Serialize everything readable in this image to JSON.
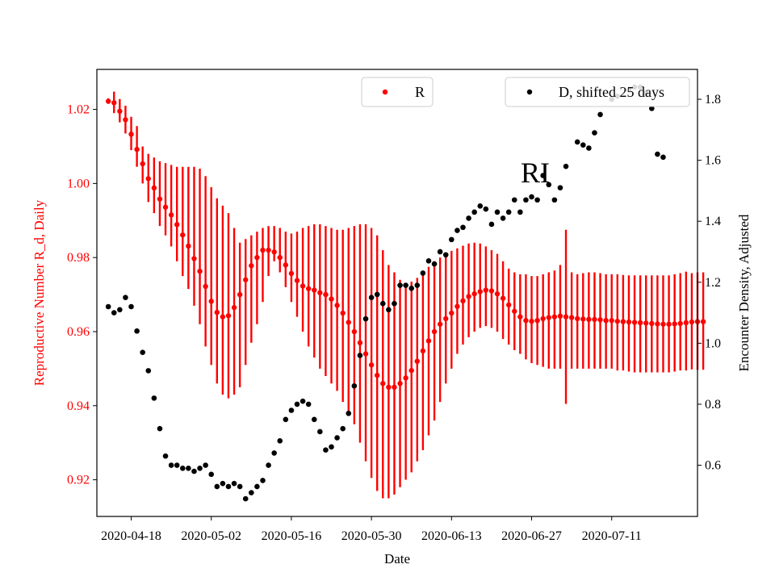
{
  "chart_data": {
    "type": "scatter",
    "title": "",
    "xlabel": "Date",
    "ylabel_left": "Reproductive Number R_d, Daily",
    "ylabel_right": "Encounter Density, Adjusted",
    "x_start_date": "2020-04-14",
    "xlim_dates": [
      "2020-04-12",
      "2020-07-26"
    ],
    "x_ticks": [
      "2020-04-18",
      "2020-05-02",
      "2020-05-16",
      "2020-05-30",
      "2020-06-13",
      "2020-06-27",
      "2020-07-11"
    ],
    "ylim_left": [
      0.9101,
      1.0308
    ],
    "ylim_right": [
      0.432,
      1.898
    ],
    "yticks_left": [
      "0.92",
      "0.94",
      "0.96",
      "0.98",
      "1.00",
      "1.02"
    ],
    "yticks_right": [
      "0.6",
      "0.8",
      "1.0",
      "1.2",
      "1.4",
      "1.6",
      "1.8"
    ],
    "annotation": "RI",
    "colors": {
      "R": "#ff0000",
      "D": "#000000",
      "left_axis_text": "#ff0000"
    },
    "legend": [
      {
        "name": "R",
        "color": "#ff0000",
        "position": "top-center"
      },
      {
        "name": "D, shifted 25 days",
        "color": "#000000",
        "position": "top-right"
      }
    ],
    "series_R": {
      "name": "R",
      "values": [
        1.0222,
        1.0218,
        1.0195,
        1.0172,
        1.0133,
        1.0092,
        1.0053,
        1.0013,
        0.9988,
        0.9958,
        0.9936,
        0.9915,
        0.9889,
        0.9861,
        0.9831,
        0.9797,
        0.9763,
        0.9722,
        0.9682,
        0.9652,
        0.964,
        0.9643,
        0.9665,
        0.97,
        0.974,
        0.9778,
        0.98,
        0.982,
        0.982,
        0.9815,
        0.98,
        0.978,
        0.9757,
        0.9738,
        0.9723,
        0.9716,
        0.9712,
        0.9705,
        0.97,
        0.9688,
        0.9671,
        0.965,
        0.9625,
        0.96,
        0.957,
        0.954,
        0.951,
        0.9482,
        0.946,
        0.945,
        0.945,
        0.946,
        0.9475,
        0.9495,
        0.952,
        0.9548,
        0.9575,
        0.96,
        0.962,
        0.9635,
        0.965,
        0.9668,
        0.9683,
        0.9695,
        0.9702,
        0.9708,
        0.9712,
        0.971,
        0.9702,
        0.969,
        0.9672,
        0.9655,
        0.964,
        0.963,
        0.9628,
        0.963,
        0.9635,
        0.9638,
        0.964,
        0.9642,
        0.964,
        0.9638,
        0.9635,
        0.9634,
        0.9633,
        0.9633,
        0.9632,
        0.963,
        0.963,
        0.9628,
        0.9627,
        0.9626,
        0.9625,
        0.9624,
        0.9623,
        0.9622,
        0.9621,
        0.962,
        0.962,
        0.9621,
        0.9622,
        0.9624,
        0.9626,
        0.9627,
        0.9627
      ],
      "upper": [
        1.023,
        1.0248,
        1.0228,
        1.021,
        1.018,
        1.0155,
        1.01,
        1.008,
        1.007,
        1.006,
        1.0055,
        1.005,
        1.0045,
        1.0045,
        1.0045,
        1.0045,
        1.004,
        1.002,
        0.999,
        0.996,
        0.994,
        0.992,
        0.988,
        0.984,
        0.985,
        0.986,
        0.987,
        0.988,
        0.9885,
        0.9885,
        0.988,
        0.987,
        0.9865,
        0.987,
        0.988,
        0.9885,
        0.989,
        0.989,
        0.9885,
        0.988,
        0.9875,
        0.9875,
        0.988,
        0.9885,
        0.989,
        0.989,
        0.988,
        0.986,
        0.982,
        0.978,
        0.976,
        0.974,
        0.973,
        0.9735,
        0.9745,
        0.976,
        0.9775,
        0.979,
        0.98,
        0.981,
        0.9818,
        0.9825,
        0.9832,
        0.9838,
        0.984,
        0.9838,
        0.983,
        0.982,
        0.981,
        0.979,
        0.977,
        0.976,
        0.9755,
        0.9755,
        0.975,
        0.975,
        0.9755,
        0.976,
        0.9765,
        0.978,
        0.9875,
        0.976,
        0.9755,
        0.9758,
        0.976,
        0.976,
        0.9758,
        0.9755,
        0.9755,
        0.9755,
        0.9753,
        0.9752,
        0.9752,
        0.9752,
        0.9752,
        0.9752,
        0.9752,
        0.9752,
        0.9752,
        0.9755,
        0.9758,
        0.9762,
        0.9758,
        0.976,
        0.976
      ],
      "lower": [
        1.0215,
        1.019,
        1.0165,
        1.0135,
        1.009,
        1.0045,
        1.0,
        0.995,
        0.992,
        0.9885,
        0.986,
        0.983,
        0.979,
        0.975,
        0.9715,
        0.967,
        0.962,
        0.956,
        0.951,
        0.946,
        0.943,
        0.942,
        0.943,
        0.945,
        0.951,
        0.957,
        0.962,
        0.968,
        0.975,
        0.979,
        0.976,
        0.972,
        0.968,
        0.964,
        0.96,
        0.956,
        0.953,
        0.95,
        0.948,
        0.946,
        0.944,
        0.941,
        0.938,
        0.935,
        0.93,
        0.925,
        0.9205,
        0.917,
        0.915,
        0.915,
        0.916,
        0.918,
        0.92,
        0.922,
        0.925,
        0.928,
        0.932,
        0.936,
        0.941,
        0.946,
        0.95,
        0.954,
        0.9565,
        0.9585,
        0.96,
        0.961,
        0.9615,
        0.961,
        0.96,
        0.958,
        0.9565,
        0.955,
        0.954,
        0.9525,
        0.9515,
        0.951,
        0.9505,
        0.95,
        0.95,
        0.95,
        0.9405,
        0.95,
        0.95,
        0.95,
        0.95,
        0.95,
        0.95,
        0.95,
        0.95,
        0.9495,
        0.9495,
        0.9492,
        0.949,
        0.949,
        0.949,
        0.949,
        0.949,
        0.949,
        0.949,
        0.9492,
        0.9495,
        0.9495,
        0.9498,
        0.9497,
        0.9497
      ]
    },
    "series_D": {
      "name": "D, shifted 25 days",
      "points": [
        [
          0,
          1.12
        ],
        [
          1,
          1.1
        ],
        [
          2,
          1.11
        ],
        [
          3,
          1.15
        ],
        [
          4,
          1.12
        ],
        [
          5,
          1.04
        ],
        [
          6,
          0.97
        ],
        [
          7,
          0.91
        ],
        [
          8,
          0.82
        ],
        [
          9,
          0.72
        ],
        [
          10,
          0.63
        ],
        [
          11,
          0.6
        ],
        [
          12,
          0.6
        ],
        [
          13,
          0.59
        ],
        [
          14,
          0.59
        ],
        [
          15,
          0.58
        ],
        [
          16,
          0.59
        ],
        [
          17,
          0.6
        ],
        [
          18,
          0.57
        ],
        [
          19,
          0.53
        ],
        [
          20,
          0.54
        ],
        [
          21,
          0.53
        ],
        [
          22,
          0.54
        ],
        [
          23,
          0.53
        ],
        [
          24,
          0.49
        ],
        [
          25,
          0.51
        ],
        [
          26,
          0.53
        ],
        [
          27,
          0.55
        ],
        [
          28,
          0.6
        ],
        [
          29,
          0.64
        ],
        [
          30,
          0.68
        ],
        [
          31,
          0.75
        ],
        [
          32,
          0.78
        ],
        [
          33,
          0.8
        ],
        [
          34,
          0.81
        ],
        [
          35,
          0.8
        ],
        [
          36,
          0.75
        ],
        [
          37,
          0.71
        ],
        [
          38,
          0.65
        ],
        [
          39,
          0.66
        ],
        [
          40,
          0.69
        ],
        [
          41,
          0.72
        ],
        [
          42,
          0.77
        ],
        [
          43,
          0.86
        ],
        [
          44,
          0.96
        ],
        [
          45,
          1.08
        ],
        [
          46,
          1.15
        ],
        [
          47,
          1.16
        ],
        [
          48,
          1.13
        ],
        [
          49,
          1.11
        ],
        [
          50,
          1.13
        ],
        [
          51,
          1.19
        ],
        [
          52,
          1.19
        ],
        [
          53,
          1.18
        ],
        [
          54,
          1.19
        ],
        [
          55,
          1.23
        ],
        [
          56,
          1.27
        ],
        [
          57,
          1.26
        ],
        [
          58,
          1.3
        ],
        [
          59,
          1.29
        ],
        [
          60,
          1.34
        ],
        [
          61,
          1.37
        ],
        [
          62,
          1.38
        ],
        [
          63,
          1.41
        ],
        [
          64,
          1.43
        ],
        [
          65,
          1.45
        ],
        [
          66,
          1.44
        ],
        [
          67,
          1.39
        ],
        [
          68,
          1.43
        ],
        [
          69,
          1.41
        ],
        [
          70,
          1.43
        ],
        [
          71,
          1.47
        ],
        [
          72,
          1.43
        ],
        [
          73,
          1.47
        ],
        [
          74,
          1.48
        ],
        [
          75,
          1.47
        ],
        [
          76,
          1.55
        ],
        [
          77,
          1.52
        ],
        [
          78,
          1.47
        ],
        [
          79,
          1.51
        ],
        [
          80,
          1.58
        ],
        [
          82,
          1.66
        ],
        [
          83,
          1.65
        ],
        [
          84,
          1.64
        ],
        [
          85,
          1.69
        ],
        [
          86,
          1.75
        ],
        [
          88,
          1.8
        ],
        [
          89,
          1.81
        ],
        [
          91,
          1.83
        ],
        [
          92,
          1.84
        ],
        [
          93,
          1.84
        ],
        [
          94,
          1.82
        ],
        [
          95,
          1.77
        ],
        [
          96,
          1.62
        ],
        [
          97,
          1.61
        ]
      ]
    }
  }
}
